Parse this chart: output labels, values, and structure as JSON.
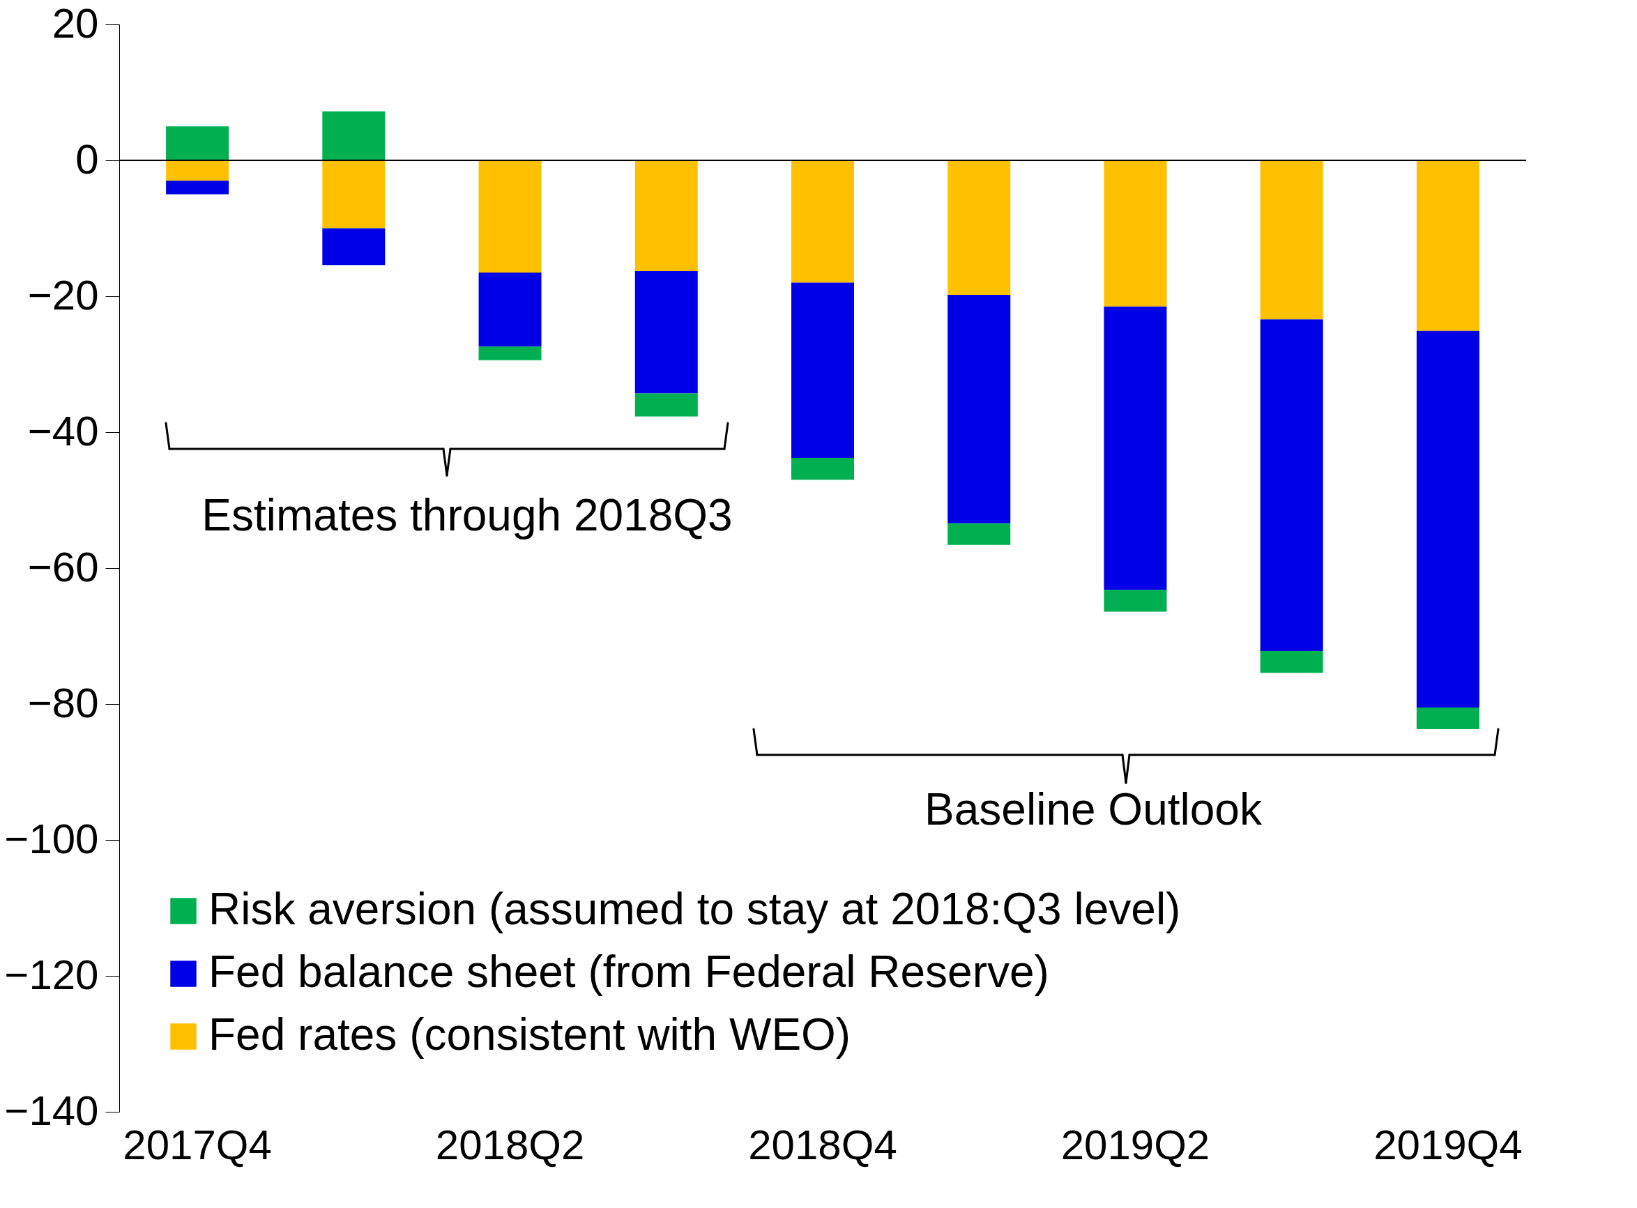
{
  "chart_data": {
    "type": "bar",
    "stacked": true,
    "categories": [
      "2017Q4",
      null,
      "2018Q2",
      null,
      "2018Q4",
      null,
      "2019Q2",
      null,
      "2019Q4"
    ],
    "series": [
      {
        "name": "Fed rates (consistent with WEO)",
        "color": "#ffc000",
        "values": [
          -3,
          -10,
          -16.5,
          -16.3,
          -18,
          -19.8,
          -21.5,
          -23.4,
          -25.1
        ]
      },
      {
        "name": "Fed balance sheet (from Federal Reserve)",
        "color": "#0000e6",
        "values": [
          -2,
          -5.4,
          -10.9,
          -18,
          -25.8,
          -33.6,
          -41.7,
          -48.8,
          -55.4
        ]
      },
      {
        "name": "Risk aversion (assumed to stay at 2018:Q3 level)",
        "color": "#00b050",
        "values": [
          5,
          7.2,
          -2,
          -3.4,
          -3.2,
          -3.2,
          -3.2,
          -3.2,
          -3.2
        ]
      }
    ],
    "ylim": [
      -140,
      20
    ],
    "yticks": [
      -140,
      -120,
      -100,
      -80,
      -60,
      -40,
      -20,
      0,
      20
    ],
    "ref_lines": [
      {
        "axis": "y",
        "value": 0,
        "color": "#000000"
      }
    ],
    "grid": false,
    "legend": "bottom left",
    "annotations": [
      "Estimates through 2018Q3",
      "Baseline Outlook"
    ]
  }
}
